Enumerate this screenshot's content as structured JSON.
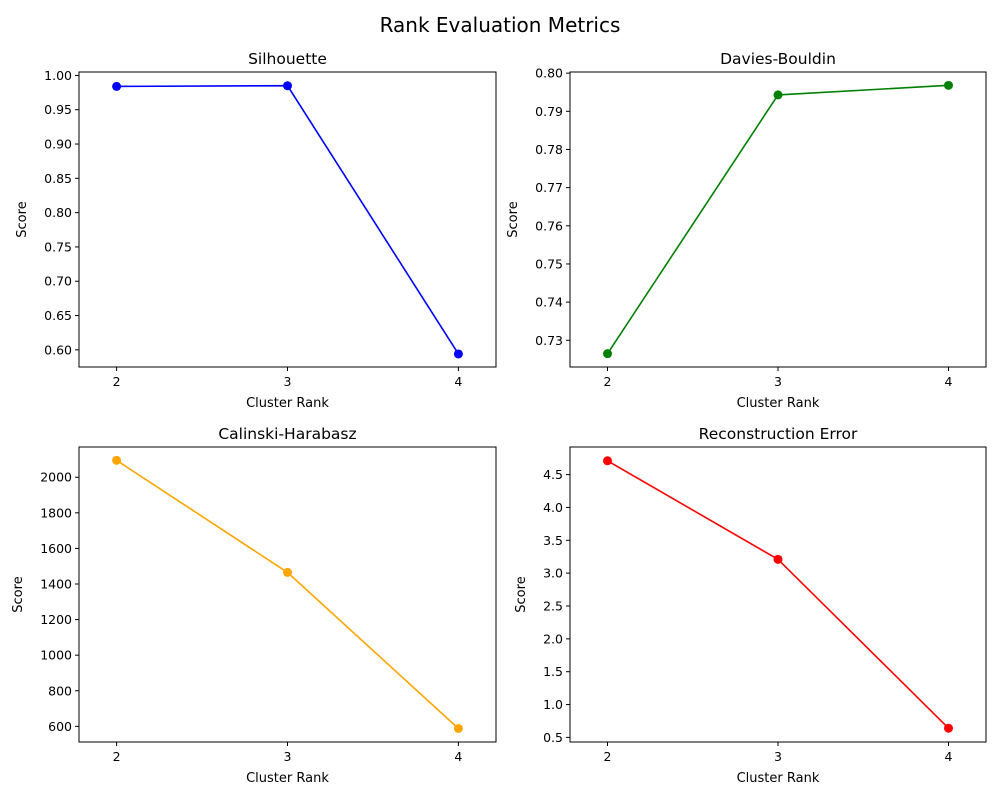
{
  "figure": {
    "title": "Rank Evaluation Metrics"
  },
  "chart_data": [
    {
      "type": "line",
      "title": "Silhouette",
      "xlabel": "Cluster Rank",
      "ylabel": "Score",
      "x": [
        2,
        3,
        4
      ],
      "values": [
        0.984,
        0.985,
        0.594
      ],
      "color": "#0000ff",
      "ylim": [
        0.575,
        1.005
      ],
      "yticks": [
        0.6,
        0.65,
        0.7,
        0.75,
        0.8,
        0.85,
        0.9,
        0.95,
        1.0
      ],
      "ytick_labels": [
        "0.60",
        "0.65",
        "0.70",
        "0.75",
        "0.80",
        "0.85",
        "0.90",
        "0.95",
        "1.00"
      ],
      "xticks": [
        2,
        3,
        4
      ],
      "xtick_labels": [
        "2",
        "3",
        "4"
      ],
      "grid": false,
      "marker": "circle"
    },
    {
      "type": "line",
      "title": "Davies-Bouldin",
      "xlabel": "Cluster Rank",
      "ylabel": "Score",
      "x": [
        2,
        3,
        4
      ],
      "values": [
        0.7265,
        0.7943,
        0.7968
      ],
      "color": "#008000",
      "ylim": [
        0.723,
        0.8003
      ],
      "yticks": [
        0.73,
        0.74,
        0.75,
        0.76,
        0.77,
        0.78,
        0.79,
        0.8
      ],
      "ytick_labels": [
        "0.73",
        "0.74",
        "0.75",
        "0.76",
        "0.77",
        "0.78",
        "0.79",
        "0.80"
      ],
      "xticks": [
        2,
        3,
        4
      ],
      "xtick_labels": [
        "2",
        "3",
        "4"
      ],
      "grid": false,
      "marker": "circle"
    },
    {
      "type": "line",
      "title": "Calinski-Harabasz",
      "xlabel": "Cluster Rank",
      "ylabel": "Score",
      "x": [
        2,
        3,
        4
      ],
      "values": [
        2095,
        1465,
        588
      ],
      "color": "#ffa500",
      "ylim": [
        512,
        2170
      ],
      "yticks": [
        600,
        800,
        1000,
        1200,
        1400,
        1600,
        1800,
        2000
      ],
      "ytick_labels": [
        "600",
        "800",
        "1000",
        "1200",
        "1400",
        "1600",
        "1800",
        "2000"
      ],
      "xticks": [
        2,
        3,
        4
      ],
      "xtick_labels": [
        "2",
        "3",
        "4"
      ],
      "grid": false,
      "marker": "circle"
    },
    {
      "type": "line",
      "title": "Reconstruction Error",
      "xlabel": "Cluster Rank",
      "ylabel": "Score",
      "x": [
        2,
        3,
        4
      ],
      "values": [
        4.71,
        3.21,
        0.64
      ],
      "color": "#ff0000",
      "ylim": [
        0.43,
        4.92
      ],
      "yticks": [
        0.5,
        1.0,
        1.5,
        2.0,
        2.5,
        3.0,
        3.5,
        4.0,
        4.5
      ],
      "ytick_labels": [
        "0.5",
        "1.0",
        "1.5",
        "2.0",
        "2.5",
        "3.0",
        "3.5",
        "4.0",
        "4.5"
      ],
      "xticks": [
        2,
        3,
        4
      ],
      "xtick_labels": [
        "2",
        "3",
        "4"
      ],
      "grid": false,
      "marker": "circle"
    }
  ]
}
